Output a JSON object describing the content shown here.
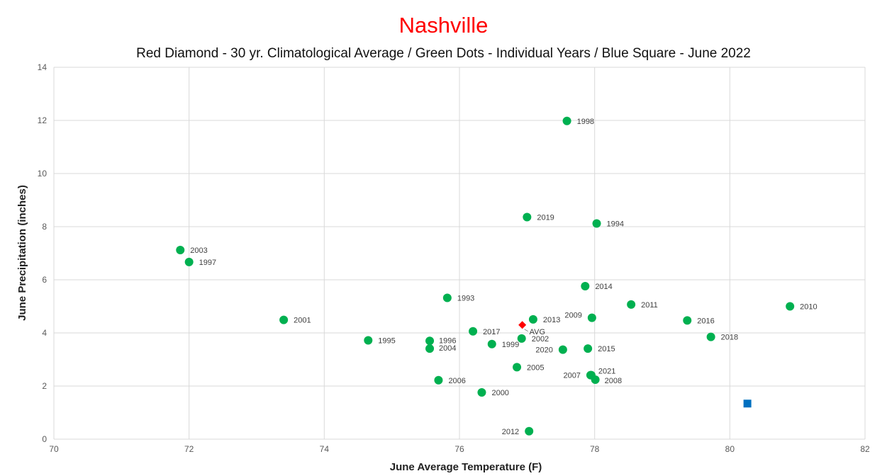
{
  "chart_data": {
    "type": "scatter",
    "title": "Nashville",
    "subtitle": "Red Diamond - 30 yr. Climatological Average / Green Dots - Individual Years / Blue Square - June 2022",
    "xlabel": "June Average Temperature (F)",
    "ylabel": "June Precipitation (inches)",
    "xlim": [
      70,
      82
    ],
    "ylim": [
      0,
      14
    ],
    "x_ticks": [
      70,
      72,
      74,
      76,
      78,
      80,
      82
    ],
    "y_ticks": [
      0,
      2,
      4,
      6,
      8,
      10,
      12,
      14
    ],
    "grid": true,
    "legend": "none",
    "colors": {
      "title": "#ff0000",
      "years": "#00b050",
      "average": "#ff0000",
      "current": "#0070c0",
      "grid": "#d9d9d9"
    },
    "series": [
      {
        "marker": "circle",
        "points": [
          {
            "label": "1993",
            "x": 75.82,
            "y": 5.32
          },
          {
            "label": "1994",
            "x": 78.03,
            "y": 8.12
          },
          {
            "label": "1995",
            "x": 74.65,
            "y": 3.72
          },
          {
            "label": "1996",
            "x": 75.56,
            "y": 3.7
          },
          {
            "label": "1997",
            "x": 72.0,
            "y": 6.67
          },
          {
            "label": "1998",
            "x": 77.59,
            "y": 11.98
          },
          {
            "label": "1999",
            "x": 76.48,
            "y": 3.58
          },
          {
            "label": "2000",
            "x": 76.33,
            "y": 1.76
          },
          {
            "label": "2001",
            "x": 73.4,
            "y": 4.49
          },
          {
            "label": "2002",
            "x": 76.92,
            "y": 3.79
          },
          {
            "label": "2003",
            "x": 71.87,
            "y": 7.12
          },
          {
            "label": "2004",
            "x": 75.56,
            "y": 3.41
          },
          {
            "label": "2005",
            "x": 76.85,
            "y": 2.71
          },
          {
            "label": "2006",
            "x": 75.69,
            "y": 2.22
          },
          {
            "label": "2007",
            "x": 77.94,
            "y": 2.41
          },
          {
            "label": "2008",
            "x": 78.01,
            "y": 2.24
          },
          {
            "label": "2009",
            "x": 77.96,
            "y": 4.57
          },
          {
            "label": "2010",
            "x": 80.89,
            "y": 5.0
          },
          {
            "label": "2011",
            "x": 78.54,
            "y": 5.07
          },
          {
            "label": "2012",
            "x": 77.03,
            "y": 0.3
          },
          {
            "label": "2013",
            "x": 77.09,
            "y": 4.51
          },
          {
            "label": "2014",
            "x": 77.86,
            "y": 5.76
          },
          {
            "label": "2015",
            "x": 77.9,
            "y": 3.41
          },
          {
            "label": "2016",
            "x": 79.37,
            "y": 4.47
          },
          {
            "label": "2017",
            "x": 76.2,
            "y": 4.06
          },
          {
            "label": "2018",
            "x": 79.72,
            "y": 3.85
          },
          {
            "label": "2019",
            "x": 77.0,
            "y": 8.36
          },
          {
            "label": "2020",
            "x": 77.53,
            "y": 3.37
          },
          {
            "label": "2021",
            "x": 77.95,
            "y": 2.41
          }
        ]
      },
      {
        "marker": "diamond",
        "points": [
          {
            "label": "AVG",
            "x": 76.93,
            "y": 4.3
          }
        ]
      },
      {
        "marker": "square",
        "points": [
          {
            "label": "",
            "x": 80.26,
            "y": 1.34
          }
        ]
      }
    ]
  }
}
